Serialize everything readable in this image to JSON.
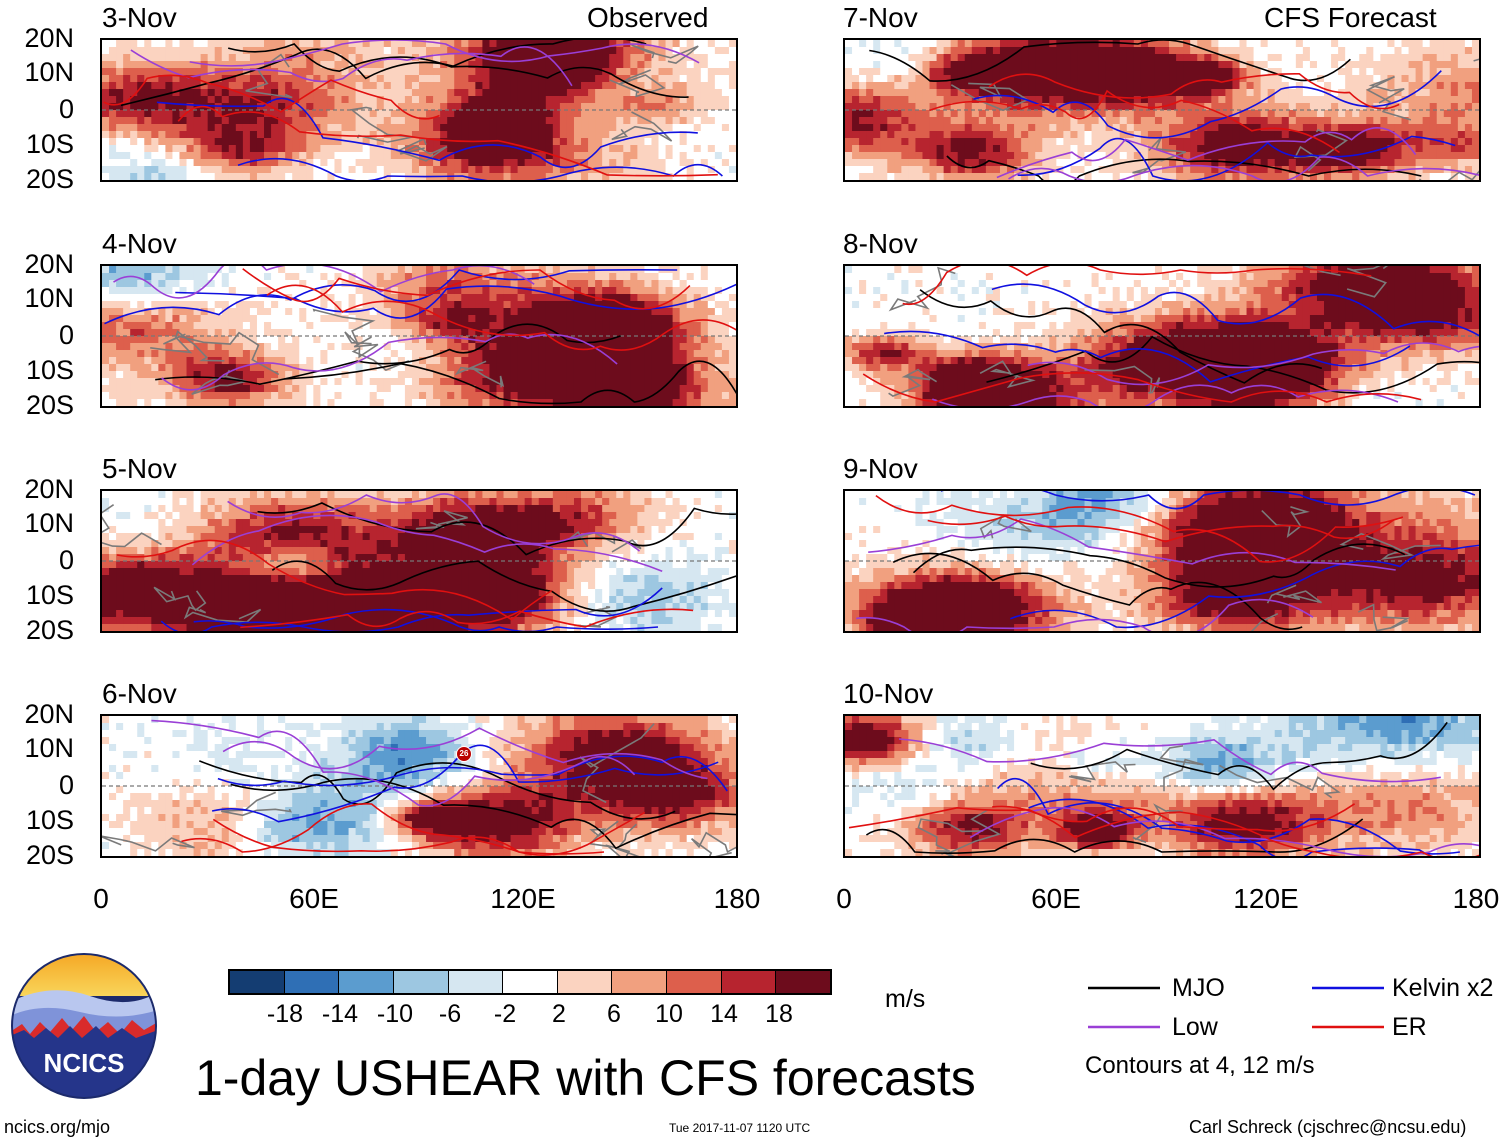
{
  "panels": [
    {
      "date": "3-Nov",
      "tag": "Observed"
    },
    {
      "date": "4-Nov",
      "tag": ""
    },
    {
      "date": "5-Nov",
      "tag": ""
    },
    {
      "date": "6-Nov",
      "tag": ""
    },
    {
      "date": "7-Nov",
      "tag": "CFS Forecast"
    },
    {
      "date": "8-Nov",
      "tag": ""
    },
    {
      "date": "9-Nov",
      "tag": ""
    },
    {
      "date": "10-Nov",
      "tag": ""
    }
  ],
  "lat_labels": [
    "20N",
    "10N",
    "0",
    "10S",
    "20S"
  ],
  "lon_labels": [
    "0",
    "60E",
    "120E",
    "180"
  ],
  "storm_marker": "26",
  "colorbar": {
    "ticks": [
      "-18",
      "-14",
      "-10",
      "-6",
      "-2",
      "2",
      "6",
      "10",
      "14",
      "18"
    ],
    "colors": [
      "#143d72",
      "#2f6fb5",
      "#5b9ccf",
      "#9dc7e1",
      "#d6e7f1",
      "#ffffff",
      "#fbd3c0",
      "#f1a07f",
      "#dd5f4c",
      "#b7242f",
      "#6d0c1c"
    ],
    "unit": "m/s"
  },
  "legend": {
    "items": [
      {
        "label": "MJO",
        "color": "#000000"
      },
      {
        "label": "Kelvin x2",
        "color": "#1010e0"
      },
      {
        "label": "Low",
        "color": "#9a3fd6"
      },
      {
        "label": "ER",
        "color": "#e01010"
      }
    ],
    "note": "Contours at 4, 12 m/s"
  },
  "title": "1-day USHEAR with CFS forecasts",
  "logo_text": "NCICS",
  "footer": {
    "url": "ncics.org/mjo",
    "timestamp": "Tue 2017-11-07 1120 UTC",
    "credit": "Carl Schreck (cjschrec@ncsu.edu)"
  }
}
